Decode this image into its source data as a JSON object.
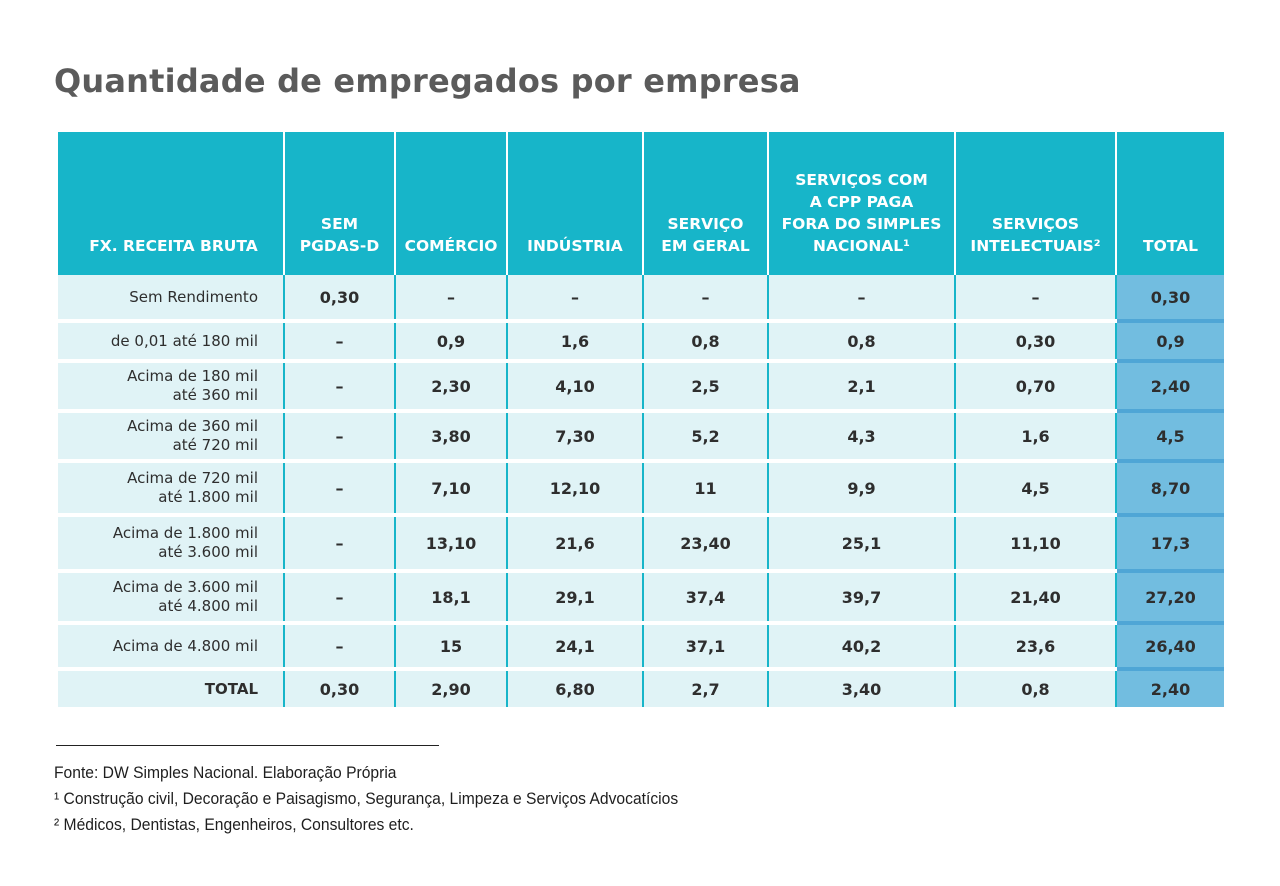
{
  "title": "Quantidade de empregados por empresa",
  "table": {
    "headers": [
      "FX. RECEITA BRUTA",
      "SEM\nPGDAS-D",
      "COMÉRCIO",
      "INDÚSTRIA",
      "SERVIÇO\nEM GERAL",
      "SERVIÇOS COM\nA CPP PAGA\nFORA DO SIMPLES\nNACIONAL¹",
      "SERVIÇOS\nINTELECTUAIS²",
      "TOTAL"
    ],
    "rows": [
      [
        "Sem Rendimento",
        "0,30",
        "–",
        "–",
        "–",
        "–",
        "–",
        "0,30"
      ],
      [
        "de 0,01 até 180 mil",
        "–",
        "0,9",
        "1,6",
        "0,8",
        "0,8",
        "0,30",
        "0,9"
      ],
      [
        "Acima de 180 mil\naté 360 mil",
        "–",
        "2,30",
        "4,10",
        "2,5",
        "2,1",
        "0,70",
        "2,40"
      ],
      [
        "Acima de 360 mil\naté 720 mil",
        "–",
        "3,80",
        "7,30",
        "5,2",
        "4,3",
        "1,6",
        "4,5"
      ],
      [
        "Acima de 720 mil\naté 1.800 mil",
        "–",
        "7,10",
        "12,10",
        "11",
        "9,9",
        "4,5",
        "8,70"
      ],
      [
        "Acima de 1.800 mil\naté 3.600 mil",
        "–",
        "13,10",
        "21,6",
        "23,40",
        "25,1",
        "11,10",
        "17,3"
      ],
      [
        "Acima de 3.600 mil\naté 4.800 mil",
        "–",
        "18,1",
        "29,1",
        "37,4",
        "39,7",
        "21,40",
        "27,20"
      ],
      [
        "Acima de 4.800 mil",
        "–",
        "15",
        "24,1",
        "37,1",
        "40,2",
        "23,6",
        "26,40"
      ],
      [
        "TOTAL",
        "0,30",
        "2,90",
        "6,80",
        "2,7",
        "3,40",
        "0,8",
        "2,40"
      ]
    ]
  },
  "notes": [
    "Fonte: DW Simples Nacional. Elaboração Própria",
    "¹ Construção civil, Decoração e Paisagismo, Segurança, Limpeza e Serviços Advocatícios",
    "² Médicos, Dentistas, Engenheiros, Consultores etc."
  ],
  "colors": {
    "header_bg": "#17b5c9",
    "row_bg": "#e0f3f6",
    "total_col_bg": "#72bde0",
    "title": "#5b5b5b"
  }
}
